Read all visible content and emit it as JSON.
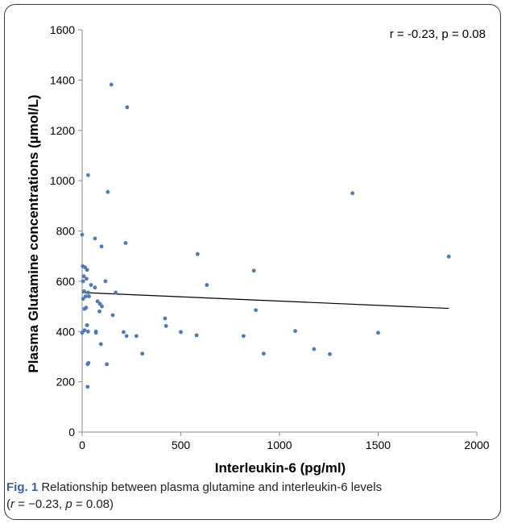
{
  "chart_data": {
    "type": "scatter",
    "title": "",
    "xlabel": "Interleukin-6 (pg/ml)",
    "ylabel": "Plasma Glutamine concentrations (µmol/L)",
    "xlim": [
      0,
      2000
    ],
    "ylim": [
      0,
      1600
    ],
    "xticks": [
      0,
      500,
      1000,
      1500,
      2000
    ],
    "yticks": [
      0,
      200,
      400,
      600,
      800,
      1000,
      1200,
      1400,
      1600
    ],
    "xtick_labels": [
      "0",
      "500",
      "1000",
      "1500",
      "2000"
    ],
    "ytick_labels": [
      "0",
      "200",
      "400",
      "600",
      "800",
      "1000",
      "1200",
      "1400",
      "1600"
    ],
    "annotation": "r = -0.23, p = 0.08",
    "grid": false,
    "point_color": "#4a7ab8",
    "line_color": "#000000",
    "points": [
      {
        "x": 0,
        "y": 785
      },
      {
        "x": 0,
        "y": 395
      },
      {
        "x": 3,
        "y": 660
      },
      {
        "x": 5,
        "y": 600
      },
      {
        "x": 5,
        "y": 530
      },
      {
        "x": 8,
        "y": 620
      },
      {
        "x": 10,
        "y": 560
      },
      {
        "x": 12,
        "y": 490
      },
      {
        "x": 12,
        "y": 405
      },
      {
        "x": 15,
        "y": 655
      },
      {
        "x": 18,
        "y": 540
      },
      {
        "x": 20,
        "y": 495
      },
      {
        "x": 22,
        "y": 610
      },
      {
        "x": 25,
        "y": 645
      },
      {
        "x": 25,
        "y": 425
      },
      {
        "x": 28,
        "y": 270
      },
      {
        "x": 28,
        "y": 180
      },
      {
        "x": 30,
        "y": 1022
      },
      {
        "x": 30,
        "y": 555
      },
      {
        "x": 30,
        "y": 400
      },
      {
        "x": 32,
        "y": 275
      },
      {
        "x": 35,
        "y": 540
      },
      {
        "x": 45,
        "y": 585
      },
      {
        "x": 65,
        "y": 770
      },
      {
        "x": 65,
        "y": 575
      },
      {
        "x": 70,
        "y": 400
      },
      {
        "x": 70,
        "y": 395
      },
      {
        "x": 78,
        "y": 520
      },
      {
        "x": 88,
        "y": 480
      },
      {
        "x": 90,
        "y": 510
      },
      {
        "x": 95,
        "y": 350
      },
      {
        "x": 98,
        "y": 738
      },
      {
        "x": 100,
        "y": 500
      },
      {
        "x": 118,
        "y": 600
      },
      {
        "x": 125,
        "y": 270
      },
      {
        "x": 130,
        "y": 955
      },
      {
        "x": 148,
        "y": 1382
      },
      {
        "x": 155,
        "y": 465
      },
      {
        "x": 170,
        "y": 555
      },
      {
        "x": 210,
        "y": 398
      },
      {
        "x": 220,
        "y": 752
      },
      {
        "x": 225,
        "y": 382
      },
      {
        "x": 228,
        "y": 1292
      },
      {
        "x": 275,
        "y": 382
      },
      {
        "x": 305,
        "y": 312
      },
      {
        "x": 420,
        "y": 452
      },
      {
        "x": 425,
        "y": 422
      },
      {
        "x": 500,
        "y": 398
      },
      {
        "x": 580,
        "y": 385
      },
      {
        "x": 585,
        "y": 708
      },
      {
        "x": 632,
        "y": 585
      },
      {
        "x": 818,
        "y": 382
      },
      {
        "x": 870,
        "y": 642
      },
      {
        "x": 880,
        "y": 485
      },
      {
        "x": 920,
        "y": 312
      },
      {
        "x": 1080,
        "y": 402
      },
      {
        "x": 1175,
        "y": 330
      },
      {
        "x": 1255,
        "y": 310
      },
      {
        "x": 1370,
        "y": 950
      },
      {
        "x": 1500,
        "y": 395
      },
      {
        "x": 1858,
        "y": 698
      }
    ],
    "trendline": {
      "x": [
        0,
        1858
      ],
      "y": [
        555,
        492
      ]
    }
  },
  "caption": {
    "label": "Fig. 1",
    "text_line1": " Relationship between plasma glutamine and interleukin-6 levels",
    "open": "(",
    "r_sym": "r",
    "r_val": " = −0.23, ",
    "p_sym": "p",
    "p_val": " = 0.08)"
  }
}
